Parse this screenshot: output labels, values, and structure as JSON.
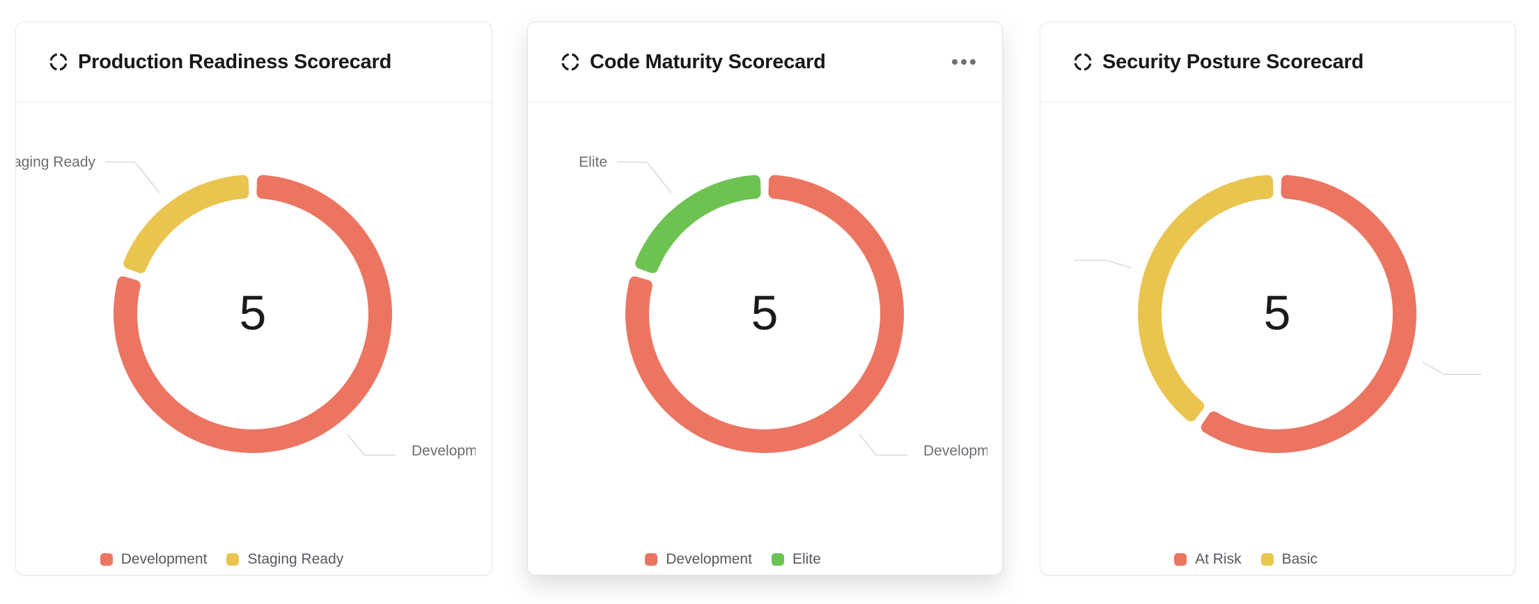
{
  "page": {
    "background": "#ffffff"
  },
  "chart_data": [
    {
      "type": "pie",
      "variant": "donut",
      "title": "Production Readiness Scorecard",
      "center_value": "5",
      "series": [
        {
          "name": "Development",
          "value": 4,
          "color": "#EB7561"
        },
        {
          "name": "Staging Ready",
          "value": 1,
          "color": "#E9C54F"
        }
      ],
      "callout_labels": {
        "top_left": "Staging Ready",
        "bottom_right": "Development"
      },
      "legend_position": "bottom",
      "has_menu": false
    },
    {
      "type": "pie",
      "variant": "donut",
      "title": "Code Maturity Scorecard",
      "center_value": "5",
      "series": [
        {
          "name": "Development",
          "value": 4,
          "color": "#EB7561"
        },
        {
          "name": "Elite",
          "value": 1,
          "color": "#6DC252"
        }
      ],
      "callout_labels": {
        "top_left": "Elite",
        "bottom_right": "Development"
      },
      "legend_position": "bottom",
      "has_menu": true
    },
    {
      "type": "pie",
      "variant": "donut",
      "title": "Security Posture Scorecard",
      "center_value": "5",
      "series": [
        {
          "name": "At Risk",
          "value": 3,
          "color": "#EB7561"
        },
        {
          "name": "Basic",
          "value": 2,
          "color": "#E9C54F"
        }
      ],
      "callout_labels": {
        "top_left": "",
        "bottom_right": ""
      },
      "legend_position": "bottom",
      "has_menu": false
    }
  ],
  "icons": {
    "header_icon": "circle-dashed-icon",
    "menu_icon": "ellipsis-menu-icon"
  }
}
